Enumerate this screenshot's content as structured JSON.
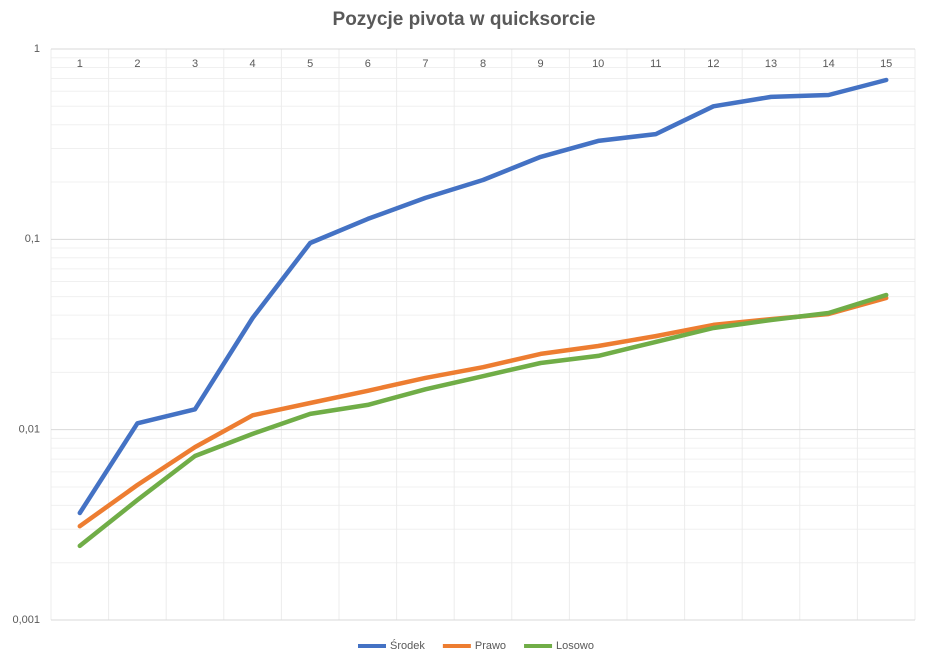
{
  "chart_data": {
    "type": "line",
    "title": "Pozycje pivota w quicksorcie",
    "categories": [
      "1",
      "2",
      "3",
      "4",
      "5",
      "6",
      "7",
      "8",
      "9",
      "10",
      "11",
      "12",
      "13",
      "14",
      "15"
    ],
    "series": [
      {
        "name": "Środek",
        "color": "#4472c4",
        "values": [
          0.00365,
          0.0108,
          0.0128,
          0.0386,
          0.0957,
          0.128,
          0.165,
          0.205,
          0.271,
          0.329,
          0.357,
          0.5,
          0.56,
          0.573,
          0.687
        ]
      },
      {
        "name": "Prawo",
        "color": "#ed7d31",
        "values": [
          0.00311,
          0.00512,
          0.0081,
          0.0119,
          0.0138,
          0.016,
          0.0187,
          0.0213,
          0.025,
          0.0275,
          0.031,
          0.0355,
          0.0381,
          0.0405,
          0.0492
        ]
      },
      {
        "name": "Losowo",
        "color": "#70ad47",
        "values": [
          0.00245,
          0.00427,
          0.00727,
          0.0095,
          0.0121,
          0.0135,
          0.0163,
          0.0191,
          0.0224,
          0.0244,
          0.0289,
          0.0342,
          0.0377,
          0.041,
          0.051
        ]
      }
    ],
    "ylim": [
      0.001,
      1
    ],
    "log_y": true,
    "yticks": [
      {
        "value": 0.001,
        "label": "0,001"
      },
      {
        "value": 0.01,
        "label": "0,01"
      },
      {
        "value": 0.1,
        "label": "0,1"
      },
      1
    ],
    "grid": true,
    "legend": "bottom"
  }
}
